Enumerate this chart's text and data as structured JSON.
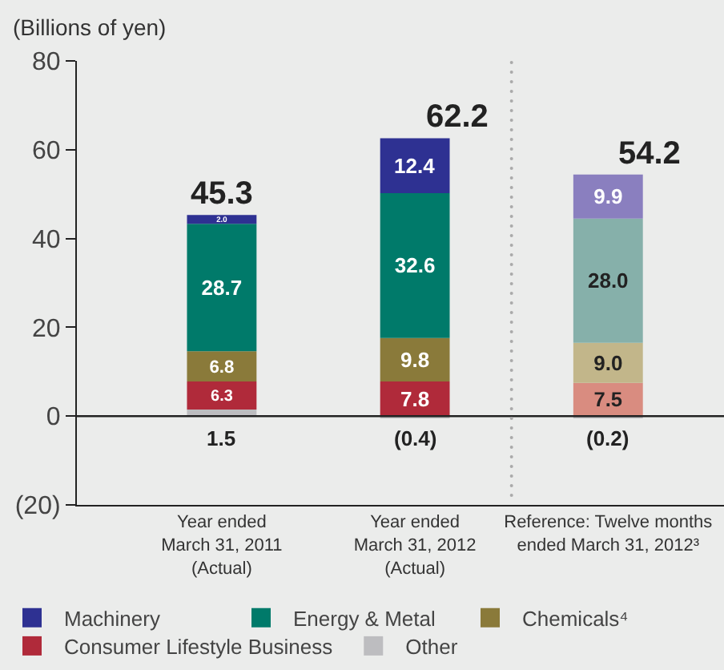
{
  "chart_data": {
    "type": "bar",
    "stacked": true,
    "ylabel": "(Billions of yen)",
    "categories": [
      "Year ended\nMarch 31, 2011\n(Actual)",
      "Year ended\nMarch 31, 2012\n(Actual)",
      "Reference: Twelve months\nended March 31, 2012³"
    ],
    "series": [
      {
        "name": "Other",
        "colors": [
          "#bdbdc0",
          "#bdbdc0",
          "#bdbdc0"
        ],
        "values": [
          1.5,
          -0.4,
          -0.2
        ],
        "value_labels": [
          "1.5",
          "(0.4)",
          "(0.2)"
        ]
      },
      {
        "name": "Consumer Lifestyle Business",
        "colors": [
          "#b02a3a",
          "#b02a3a",
          "#d98c80"
        ],
        "values": [
          6.3,
          7.8,
          7.5
        ],
        "value_labels": [
          "6.3",
          "7.8",
          "7.5"
        ]
      },
      {
        "name": "Chemicals⁴",
        "colors": [
          "#8a7a3a",
          "#8a7a3a",
          "#c2b68a"
        ],
        "values": [
          6.8,
          9.8,
          9.0
        ],
        "value_labels": [
          "6.8",
          "9.8",
          "9.0"
        ]
      },
      {
        "name": "Energy & Metal",
        "colors": [
          "#007a6a",
          "#007a6a",
          "#86b0aa"
        ],
        "values": [
          28.7,
          32.6,
          28.0
        ],
        "value_labels": [
          "28.7",
          "32.6",
          "28.0"
        ]
      },
      {
        "name": "Machinery",
        "colors": [
          "#2e3192",
          "#2e3192",
          "#8a7fbf"
        ],
        "values": [
          2.0,
          12.4,
          9.9
        ],
        "value_labels": [
          "2.0",
          "12.4",
          "9.9"
        ]
      }
    ],
    "totals": [
      "45.3",
      "62.2",
      "54.2"
    ],
    "ylim": [
      -20,
      80
    ],
    "yticks": [
      {
        "value": -20,
        "label": "(20)"
      },
      0,
      20,
      40,
      60,
      80
    ],
    "ref_lines": [
      {
        "axis": "y",
        "value": 0,
        "color": "#222222"
      }
    ],
    "legend": "bottom"
  }
}
